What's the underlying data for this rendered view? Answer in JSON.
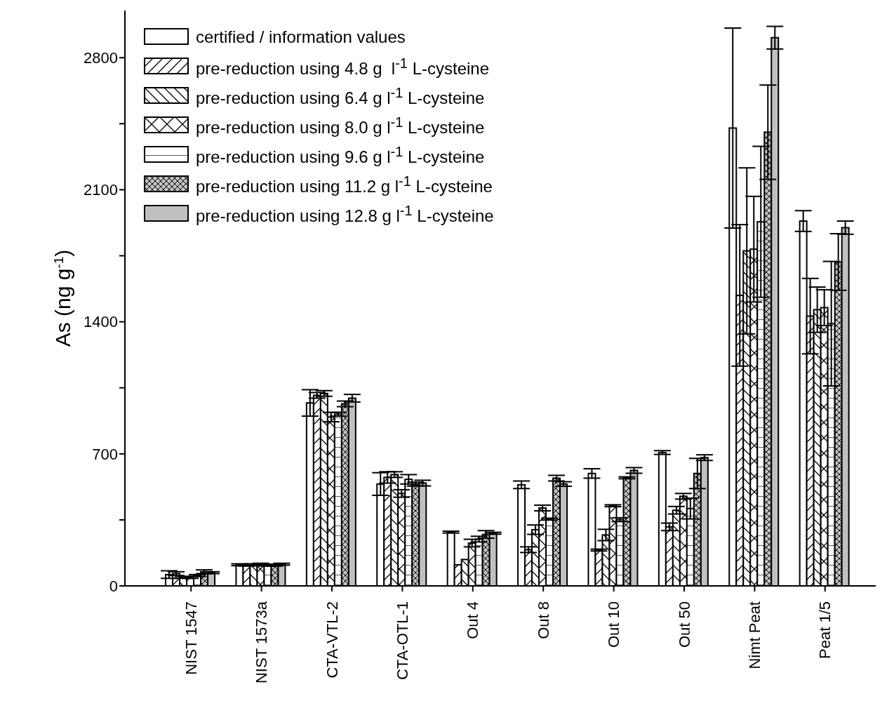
{
  "chart_data": {
    "type": "bar",
    "ylabel": "As (ng g$^{-1}$)",
    "categories": [
      "NIST 1547",
      "NIST 1573a",
      "CTA-VTL-2",
      "CTA-OTL-1",
      "Out 4",
      "Out 8",
      "Out 10",
      "Out 50",
      "Nimt Peat",
      "Peat 1/5"
    ],
    "series": [
      {
        "name": "certified / information values",
        "color": "#ffffff",
        "values": [
          60,
          112,
          970,
          540,
          285,
          536,
          596,
          707,
          2427,
          1934
        ],
        "errors": [
          20,
          5,
          70,
          60,
          5,
          20,
          25,
          10,
          530,
          55
        ]
      },
      {
        "name": "pre-reduction using 4.8 g  l$^{-1}$ L-cysteine",
        "color": "#ffffff",
        "values": [
          65,
          110,
          1010,
          575,
          112,
          192,
          190,
          313,
          1540,
          1430
        ],
        "errors": [
          10,
          5,
          15,
          30,
          null,
          15,
          5,
          20,
          375,
          200
        ]
      },
      {
        "name": "pre-reduction using 6.4 g l$^{-1}$ L-cysteine",
        "color": "#ffffff",
        "values": [
          45,
          112,
          1020,
          590,
          140,
          298,
          270,
          401,
          1776,
          1464
        ],
        "errors": [
          5,
          5,
          15,
          15,
          null,
          25,
          30,
          20,
          440,
          120
        ]
      },
      {
        "name": "pre-reduction using 8.0 g l$^{-1}$ L-cysteine",
        "color": "#ffffff",
        "values": [
          45,
          115,
          895,
          490,
          227,
          413,
          425,
          475,
          1785,
          1475
        ],
        "errors": [
          5,
          5,
          25,
          20,
          20,
          15,
          5,
          15,
          280,
          95
        ]
      },
      {
        "name": "pre-reduction using 9.6 g l$^{-1}$ L-cysteine",
        "color": "#ffffff",
        "values": [
          55,
          110,
          910,
          565,
          248,
          354,
          351,
          410,
          1930,
          1390
        ],
        "errors": [
          5,
          5,
          10,
          25,
          15,
          5,
          10,
          55,
          400,
          330
        ]
      },
      {
        "name": "pre-reduction using 11.2 g l$^{-1}$ L-cysteine",
        "color": "#c0c0c0",
        "values": [
          75,
          110,
          965,
          540,
          273,
          571,
          573,
          596,
          2405,
          1717
        ],
        "errors": [
          10,
          5,
          15,
          10,
          20,
          15,
          5,
          80,
          250,
          150
        ]
      },
      {
        "name": "pre-reduction using 12.8 g l$^{-1}$ L-cysteine",
        "color": "#c0c0c0",
        "values": [
          70,
          115,
          995,
          545,
          279,
          540,
          612,
          680,
          2906,
          1899
        ],
        "errors": [
          5,
          5,
          20,
          15,
          5,
          12,
          15,
          15,
          60,
          35
        ]
      }
    ],
    "ylim": [
      0,
      3050
    ],
    "yticks": [
      0,
      {
        "value": 350,
        "label": null
      },
      700,
      {
        "value": 1050,
        "label": null
      },
      1400,
      {
        "value": 1750,
        "label": null
      },
      2100,
      {
        "value": 2450,
        "label": null
      },
      2800
    ],
    "legend": "top left"
  }
}
